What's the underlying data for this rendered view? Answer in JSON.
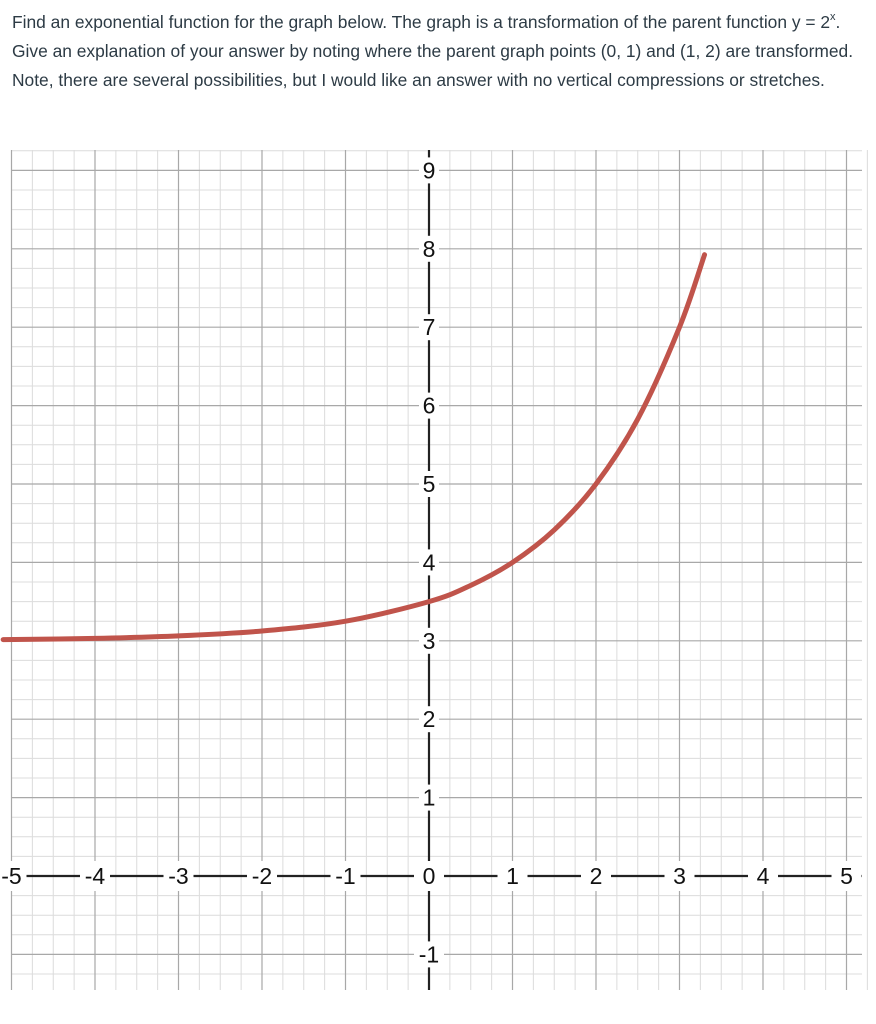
{
  "question": {
    "part1": "Find an exponential function for the graph below. The graph is a transformation of the parent function y = 2",
    "sup": "x",
    "part2": ". Give an explanation of your answer by noting where the parent graph points (0, 1) and (1, 2) are transformed. Note, there are several possibilities, but I would like an answer with no vertical compressions or stretches."
  },
  "chart_data": {
    "type": "line",
    "title": "",
    "xlabel": "",
    "ylabel": "",
    "xlim": [
      -5.1,
      5.3
    ],
    "ylim": [
      -1.45,
      9.3
    ],
    "grid": true,
    "minor_grid_per_unit": 4,
    "x_ticks": [
      -5,
      -4,
      -3,
      -2,
      -1,
      0,
      1,
      2,
      3,
      4,
      5
    ],
    "x_tick_labels": [
      "-5",
      "-4",
      "-3",
      "-2",
      "-1",
      "0",
      "1",
      "2",
      "3",
      "4",
      "5"
    ],
    "y_ticks": [
      -1,
      1,
      2,
      3,
      4,
      5,
      6,
      7,
      8,
      9
    ],
    "y_tick_labels": [
      "-1",
      "1",
      "2",
      "3",
      "4",
      "5",
      "6",
      "7",
      "8",
      "9"
    ],
    "series": [
      {
        "color": "#c0544b",
        "x": [
          -5.1,
          -4,
          -3,
          -2,
          -1,
          0,
          0.5,
          1,
          1.5,
          2,
          2.5,
          3,
          3.3
        ],
        "y": [
          3.015,
          3.031,
          3.063,
          3.125,
          3.25,
          3.5,
          3.707,
          4.0,
          4.414,
          5.0,
          5.828,
          7.0,
          7.925
        ]
      }
    ]
  }
}
